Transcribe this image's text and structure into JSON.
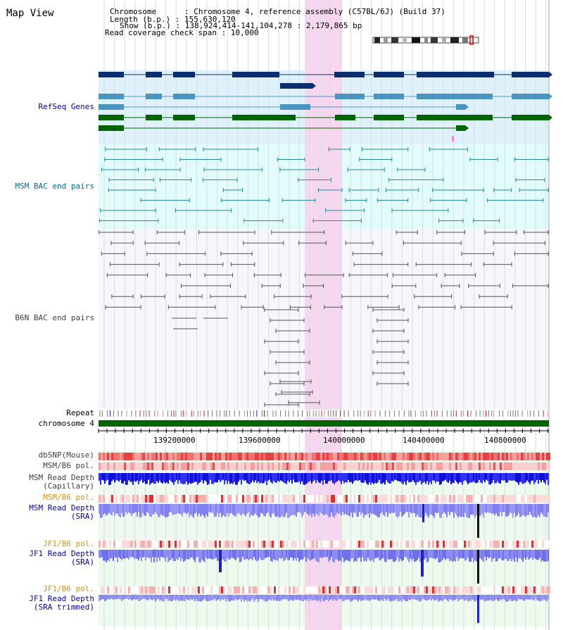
{
  "title": "Map View",
  "header": {
    "lines": [
      "Chromosome      : Chromosome 4, reference assembly (C57BL/6J) (Build 37)",
      "Length (b.p.) : 155,630,120",
      "Show (b.p.) : 138,924,414-141,104,278 : 2,179,865 bp",
      "Read coverage check span : 10,000"
    ]
  },
  "tracks": {
    "refseq": "RefSeq Genes",
    "msm_bac": "MSM BAC end pairs",
    "b6n_bac": "B6N BAC end pairs",
    "repeat": "Repeat",
    "chromosome": "chromosome 4",
    "dbsnp": "dbSNP(Mouse)",
    "msm_b6_pol": "MSM/B6 pol.",
    "msm_depth_cap_1": "MSM Read Depth",
    "msm_depth_cap_2": "(Capillary)",
    "msm_b6_pol_2": "MSM/B6 pol.",
    "msm_depth_sra_1": "MSM Read Depth",
    "msm_depth_sra_2": "(SRA)",
    "jf1_pol_1": "JF1/B6 pol.",
    "jf1_depth_sra_1": "JF1 Read Depth",
    "jf1_depth_sra_2": "(SRA)",
    "jf1_pol_2": "JF1/B6 pol.",
    "jf1_depth_trim_1": "JF1 Read Depth",
    "jf1_depth_trim_2": "(SRA trimmed)"
  },
  "axis": {
    "ticks": [
      "139200000",
      "139600000",
      "140000000",
      "140400000",
      "140800000"
    ]
  },
  "colors": {
    "refseq_dark": "#0b2e6e",
    "refseq_mid": "#4a95c0",
    "refseq_green": "#006400",
    "highlight": "#f7d6f0",
    "msm_label": "#006b8f",
    "b6n_label": "#404040",
    "sra_label": "#0000aa",
    "pol_label": "#e09000"
  }
}
